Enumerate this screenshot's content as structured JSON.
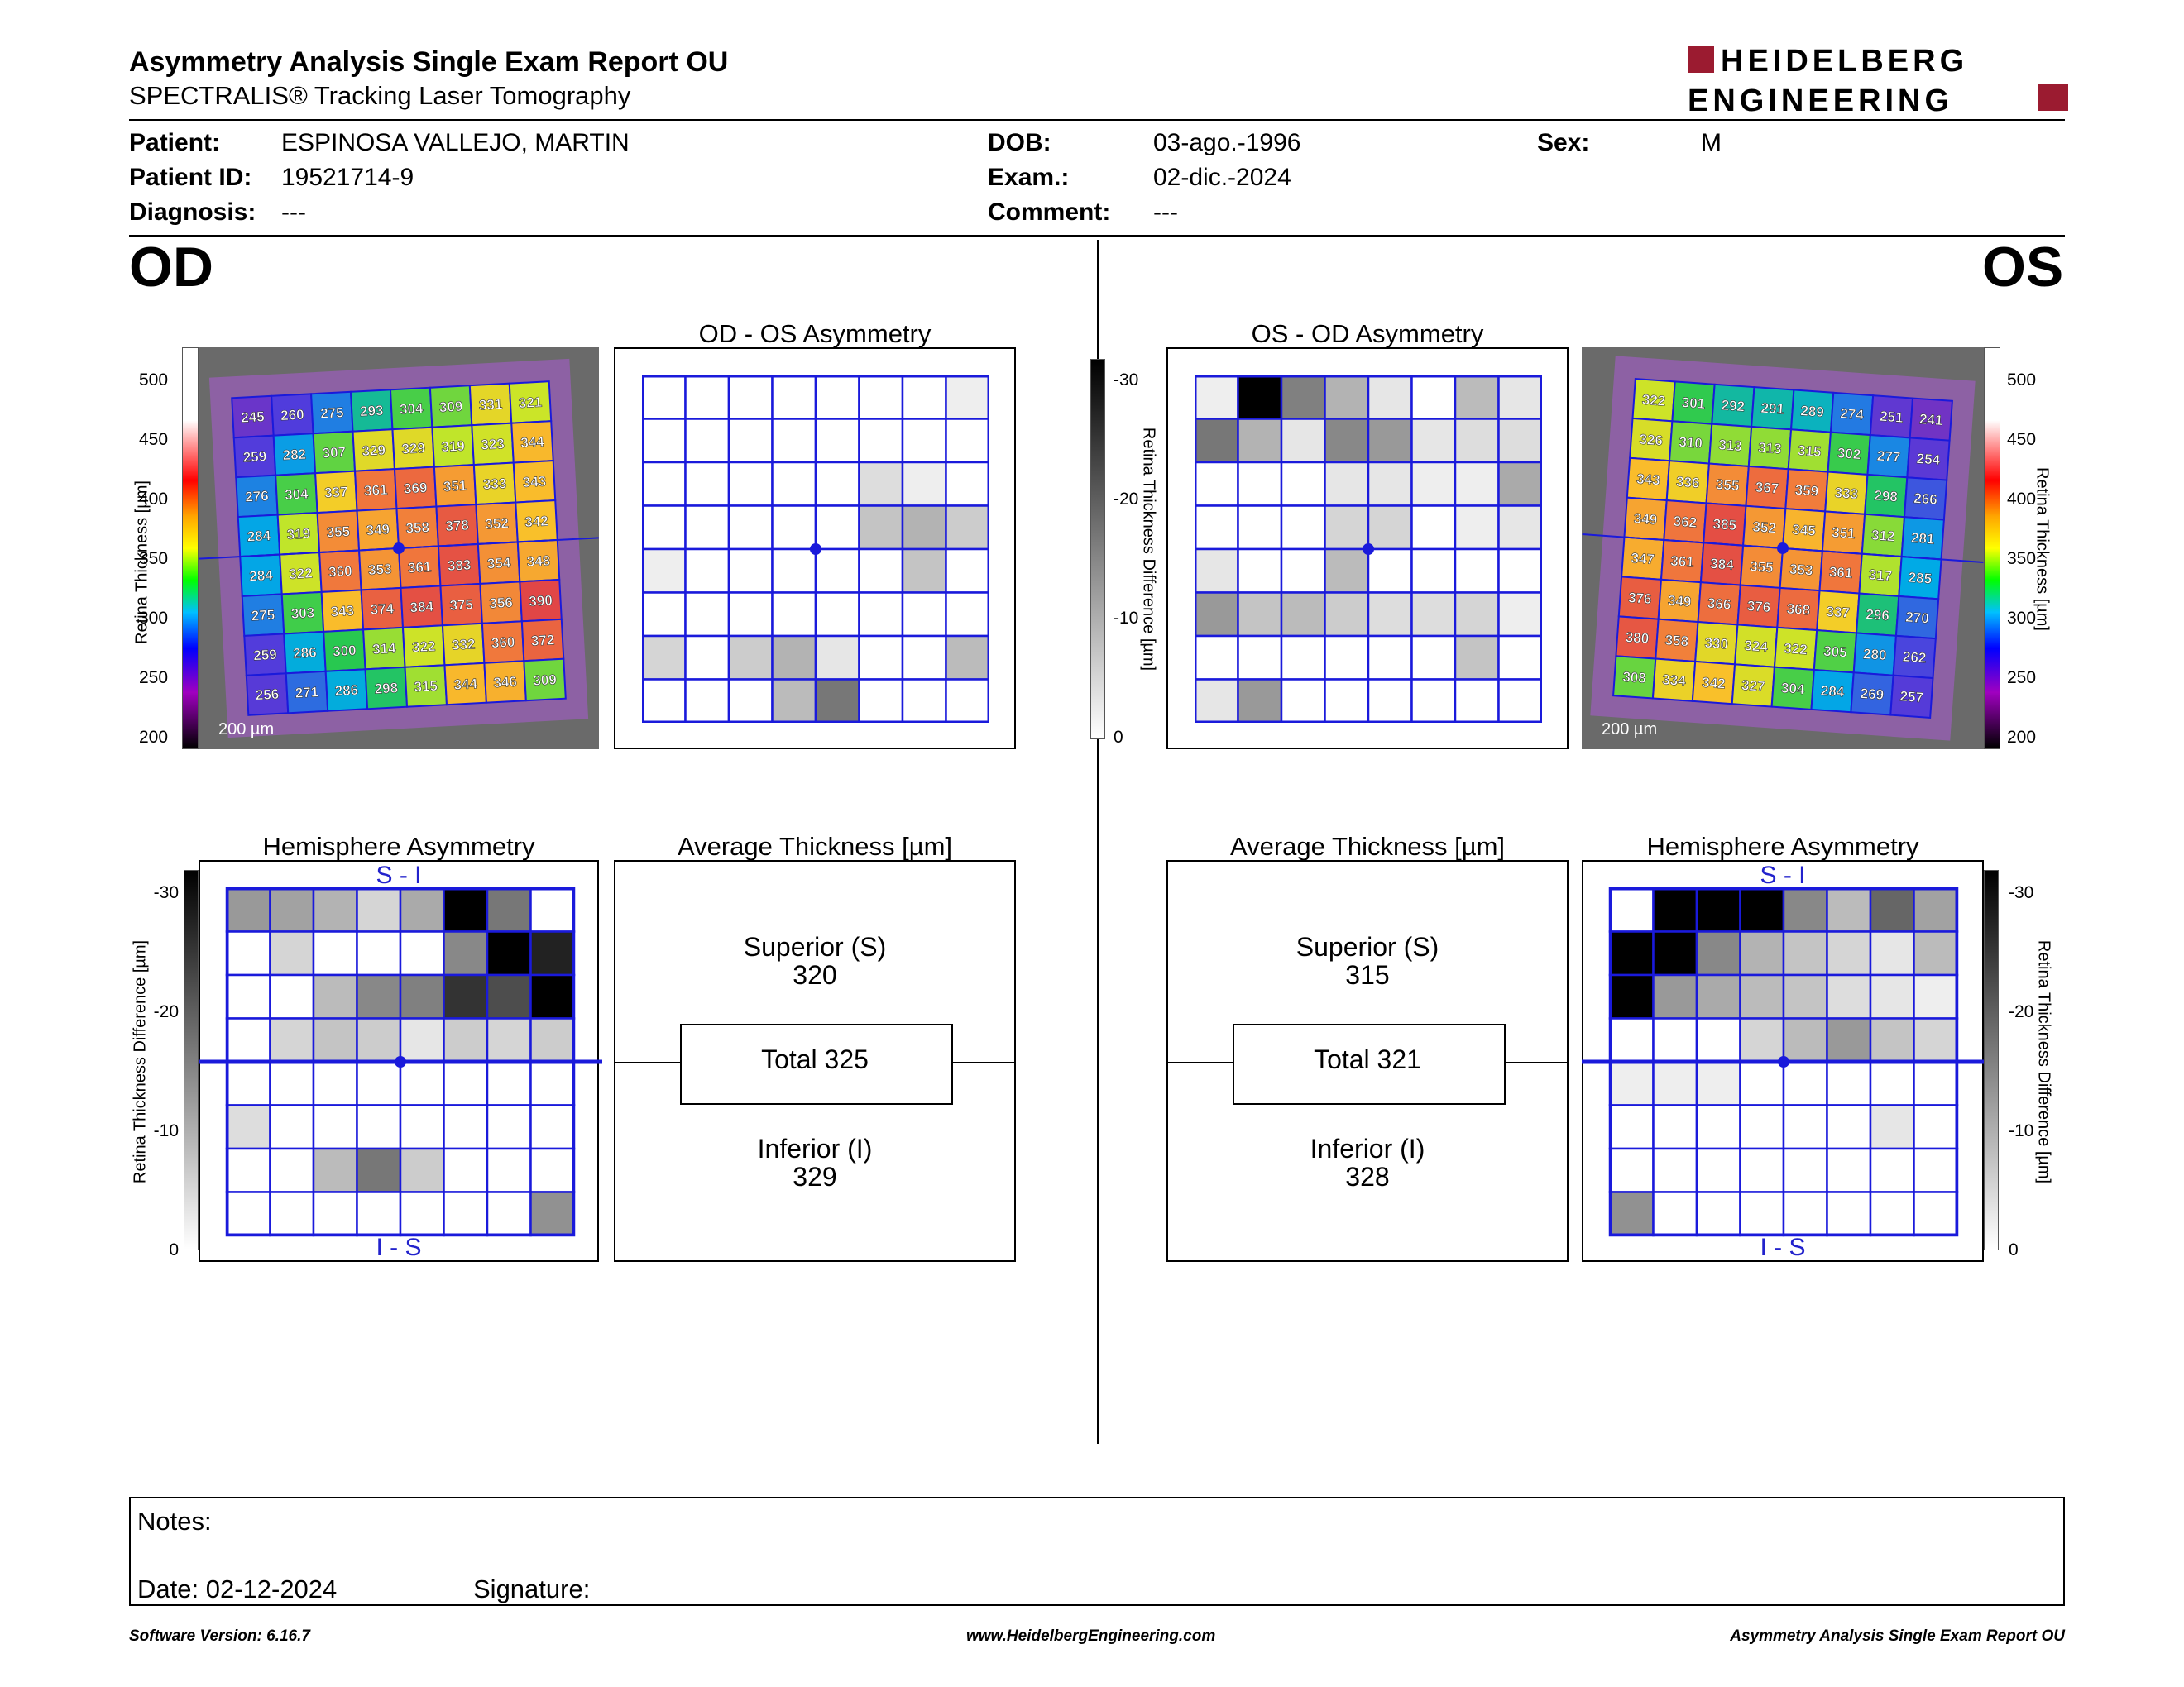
{
  "header": {
    "title": "Asymmetry Analysis Single Exam Report OU",
    "subtitle": "SPECTRALIS® Tracking Laser Tomography",
    "brand_line1": "HEIDELBERG",
    "brand_line2": "ENGINEERING",
    "brand_color": "#9b1b30"
  },
  "patient": {
    "patient_label": "Patient:",
    "patient_value": "ESPINOSA VALLEJO, MARTIN",
    "id_label": "Patient ID:",
    "id_value": "19521714-9",
    "diagnosis_label": "Diagnosis:",
    "diagnosis_value": "---",
    "dob_label": "DOB:",
    "dob_value": "03-ago.-1996",
    "exam_label": "Exam.:",
    "exam_value": "02-dic.-2024",
    "comment_label": "Comment:",
    "comment_value": "---",
    "sex_label": "Sex:",
    "sex_value": "M"
  },
  "od": {
    "eye_label": "OD",
    "asym_title": "OD - OS Asymmetry",
    "hemi_title": "Hemisphere Asymmetry",
    "hemi_top": "S - I",
    "hemi_bottom": "I - S",
    "avg_title": "Average Thickness [µm]",
    "superior_label": "Superior (S)",
    "superior_value": "320",
    "total_label": "Total 325",
    "inferior_label": "Inferior (I)",
    "inferior_value": "329",
    "scale_label": "200 µm",
    "thickness_grid": [
      [
        245,
        260,
        275,
        293,
        304,
        309,
        331,
        321
      ],
      [
        259,
        282,
        307,
        329,
        329,
        319,
        323,
        344
      ],
      [
        276,
        304,
        337,
        361,
        369,
        351,
        333,
        343
      ],
      [
        284,
        319,
        355,
        349,
        358,
        378,
        352,
        342
      ],
      [
        284,
        322,
        360,
        353,
        361,
        383,
        354,
        348
      ],
      [
        275,
        303,
        343,
        374,
        384,
        375,
        356,
        390
      ],
      [
        259,
        286,
        300,
        314,
        322,
        332,
        360,
        372
      ],
      [
        256,
        271,
        286,
        298,
        315,
        344,
        346,
        309
      ]
    ],
    "asym_grid": [
      [
        0,
        0,
        0,
        0,
        0,
        0,
        0,
        2
      ],
      [
        0,
        0,
        0,
        0,
        0,
        0,
        0,
        0
      ],
      [
        0,
        0,
        0,
        0,
        0,
        4,
        2,
        0
      ],
      [
        0,
        0,
        0,
        0,
        0,
        7,
        9,
        6
      ],
      [
        2,
        0,
        0,
        0,
        0,
        0,
        7,
        0
      ],
      [
        0,
        0,
        0,
        0,
        0,
        0,
        0,
        0
      ],
      [
        5,
        0,
        6,
        9,
        3,
        0,
        0,
        8
      ],
      [
        0,
        0,
        0,
        8,
        16,
        0,
        0,
        0
      ]
    ],
    "hemi_grid": [
      [
        12,
        11,
        9,
        5,
        10,
        30,
        16,
        0
      ],
      [
        0,
        5,
        0,
        0,
        0,
        14,
        30,
        26
      ],
      [
        0,
        0,
        8,
        14,
        15,
        24,
        21,
        30
      ],
      [
        0,
        5,
        7,
        6,
        3,
        6,
        5,
        6
      ],
      [
        0,
        0,
        0,
        0,
        0,
        0,
        0,
        0
      ],
      [
        4,
        0,
        0,
        0,
        0,
        0,
        0,
        0
      ],
      [
        0,
        0,
        8,
        16,
        6,
        0,
        0,
        0
      ],
      [
        0,
        0,
        0,
        0,
        0,
        0,
        0,
        13
      ]
    ]
  },
  "os": {
    "eye_label": "OS",
    "asym_title": "OS - OD Asymmetry",
    "hemi_title": "Hemisphere Asymmetry",
    "hemi_top": "S - I",
    "hemi_bottom": "I - S",
    "avg_title": "Average Thickness [µm]",
    "superior_label": "Superior (S)",
    "superior_value": "315",
    "total_label": "Total 321",
    "inferior_label": "Inferior (I)",
    "inferior_value": "328",
    "scale_label": "200 µm",
    "thickness_grid": [
      [
        322,
        301,
        292,
        291,
        289,
        274,
        251,
        241
      ],
      [
        326,
        310,
        313,
        313,
        315,
        302,
        277,
        254
      ],
      [
        343,
        336,
        355,
        367,
        359,
        333,
        298,
        266
      ],
      [
        349,
        362,
        385,
        352,
        345,
        351,
        312,
        281
      ],
      [
        347,
        361,
        384,
        355,
        353,
        361,
        317,
        285
      ],
      [
        376,
        349,
        366,
        376,
        368,
        337,
        296,
        270
      ],
      [
        380,
        358,
        330,
        324,
        322,
        305,
        280,
        262
      ],
      [
        308,
        334,
        342,
        327,
        304,
        284,
        269,
        257
      ]
    ],
    "asym_grid": [
      [
        2,
        30,
        15,
        9,
        3,
        0,
        8,
        3
      ],
      [
        16,
        9,
        3,
        14,
        12,
        3,
        4,
        4
      ],
      [
        0,
        0,
        0,
        3,
        3,
        2,
        2,
        10
      ],
      [
        0,
        0,
        0,
        5,
        5,
        0,
        2,
        3
      ],
      [
        3,
        0,
        0,
        8,
        0,
        0,
        0,
        0
      ],
      [
        12,
        7,
        8,
        6,
        4,
        4,
        5,
        2
      ],
      [
        0,
        0,
        0,
        0,
        0,
        0,
        7,
        0
      ],
      [
        3,
        12,
        0,
        0,
        0,
        0,
        0,
        0
      ]
    ],
    "hemi_grid": [
      [
        0,
        30,
        30,
        30,
        14,
        8,
        18,
        11
      ],
      [
        30,
        30,
        14,
        9,
        7,
        5,
        3,
        8
      ],
      [
        30,
        12,
        10,
        8,
        7,
        4,
        3,
        2
      ],
      [
        0,
        0,
        0,
        5,
        8,
        12,
        7,
        5
      ],
      [
        2,
        2,
        2,
        0,
        0,
        0,
        0,
        0
      ],
      [
        0,
        0,
        0,
        0,
        0,
        0,
        3,
        0
      ],
      [
        0,
        0,
        0,
        0,
        0,
        0,
        0,
        0
      ],
      [
        13,
        0,
        0,
        0,
        0,
        0,
        0,
        0
      ]
    ]
  },
  "axes": {
    "thickness_title": "Retina Thickness [µm]",
    "thickness_ticks": [
      "500",
      "450",
      "400",
      "350",
      "300",
      "250",
      "200"
    ],
    "diff_title": "Retina Thickness Difference [µm]",
    "diff_ticks": [
      "-30",
      "-20",
      "-10",
      "0"
    ]
  },
  "notes": {
    "notes_label": "Notes:",
    "date_label": "Date: 02-12-2024",
    "signature_label": "Signature:"
  },
  "footer": {
    "software": "Software Version: 6.16.7",
    "website": "www.HeidelbergEngineering.com",
    "report_name": "Asymmetry Analysis Single Exam Report OU"
  }
}
